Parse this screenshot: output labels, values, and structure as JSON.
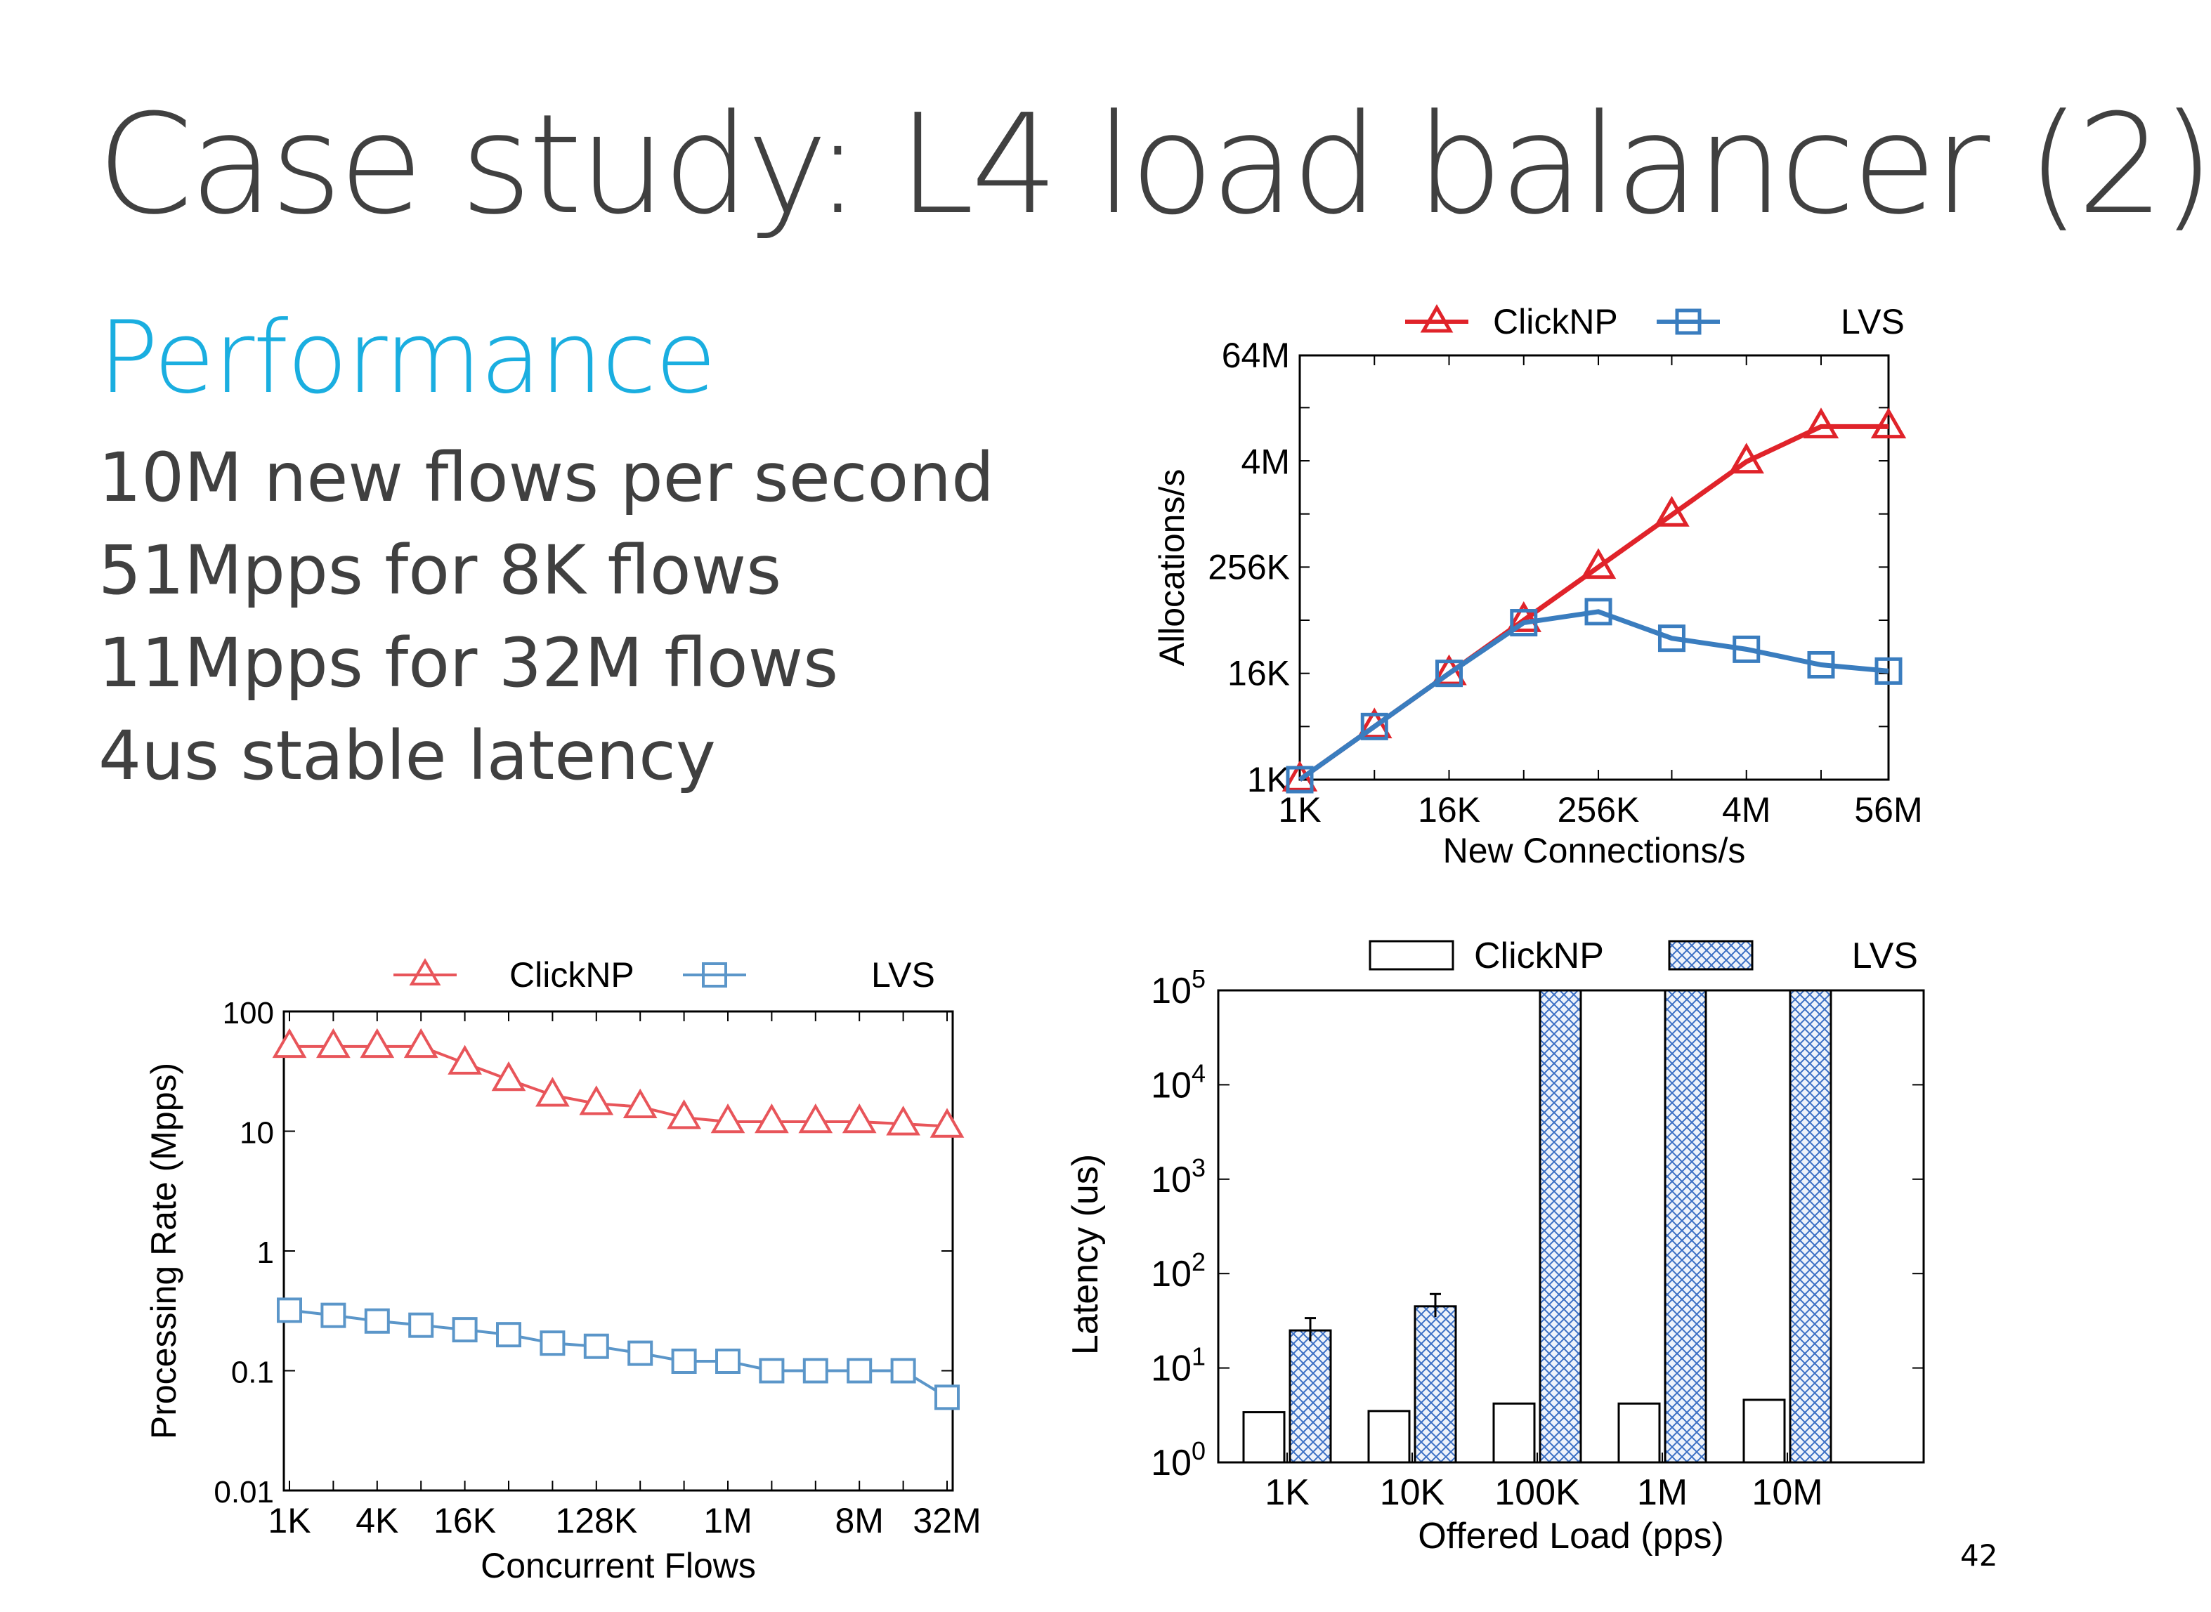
{
  "slide": {
    "title": "Case study: L4 load balancer (2)",
    "subtitle": "Performance",
    "bullets": [
      "10M new flows per second",
      "51Mpps for 8K flows",
      "11Mpps for 32M flows",
      "4us stable latency"
    ],
    "page_number": "42"
  },
  "colors": {
    "clicknp": "#e0232a",
    "lvs": "#3a7dbf",
    "clicknp_light": "#e8555a",
    "lvs_light": "#5b96c9",
    "hatch": "#3b6fc4"
  },
  "chart_data": [
    {
      "type": "line",
      "xlabel": "New Connections/s",
      "ylabel": "Allocations/s",
      "scale": "log2",
      "xticks": [
        "1K",
        "16K",
        "256K",
        "4M",
        "56M"
      ],
      "yticks": [
        "1K",
        "16K",
        "256K",
        "4M",
        "64M"
      ],
      "legend": [
        "ClickNP",
        "LVS"
      ],
      "legend_position": "top",
      "x": [
        "1K",
        "4K",
        "16K",
        "64K",
        "256K",
        "1M",
        "4M",
        "16M",
        "56M"
      ],
      "series": [
        {
          "name": "ClickNP",
          "marker": "triangle",
          "values": [
            1000,
            4000,
            16000,
            64000,
            256000,
            1000000,
            4000000,
            10000000,
            10000000
          ]
        },
        {
          "name": "LVS",
          "marker": "square",
          "values": [
            1000,
            4000,
            16000,
            60000,
            80000,
            40000,
            30000,
            20000,
            17000
          ]
        }
      ]
    },
    {
      "type": "line",
      "xlabel": "Concurrent Flows",
      "ylabel": "Processing Rate (Mpps)",
      "scale": "log",
      "xticks": [
        "1K",
        "4K",
        "16K",
        "128K",
        "1M",
        "8M",
        "32M"
      ],
      "yticks": [
        "0.01",
        "0.1",
        "1",
        "10",
        "100"
      ],
      "legend": [
        "ClickNP",
        "LVS"
      ],
      "legend_position": "top",
      "x": [
        "1K",
        "2K",
        "4K",
        "8K",
        "16K",
        "32K",
        "64K",
        "128K",
        "256K",
        "512K",
        "1M",
        "2M",
        "4M",
        "8M",
        "16M",
        "32M"
      ],
      "series": [
        {
          "name": "ClickNP",
          "marker": "triangle",
          "values": [
            51,
            51,
            51,
            51,
            37,
            27,
            20,
            17,
            16,
            13,
            12,
            12,
            12,
            12,
            11.5,
            11
          ]
        },
        {
          "name": "LVS",
          "marker": "square",
          "values": [
            0.32,
            0.29,
            0.26,
            0.24,
            0.22,
            0.2,
            0.17,
            0.16,
            0.14,
            0.12,
            0.12,
            0.1,
            0.1,
            0.1,
            0.1,
            0.06
          ]
        }
      ]
    },
    {
      "type": "bar",
      "xlabel": "Offered Load (pps)",
      "ylabel": "Latency (us)",
      "scale": "log10",
      "categories": [
        "1K",
        "10K",
        "100K",
        "1M",
        "10M"
      ],
      "ytick_base": "10",
      "ytick_exponents": [
        "0",
        "1",
        "2",
        "3",
        "4",
        "5"
      ],
      "legend": [
        "ClickNP",
        "LVS"
      ],
      "legend_position": "top",
      "series": [
        {
          "name": "ClickNP",
          "pattern": "empty",
          "values": [
            3.4,
            3.5,
            4.2,
            4.2,
            4.6
          ]
        },
        {
          "name": "LVS",
          "pattern": "crosshatch",
          "values": [
            25,
            45,
            100000,
            100000,
            100000
          ]
        }
      ]
    }
  ]
}
